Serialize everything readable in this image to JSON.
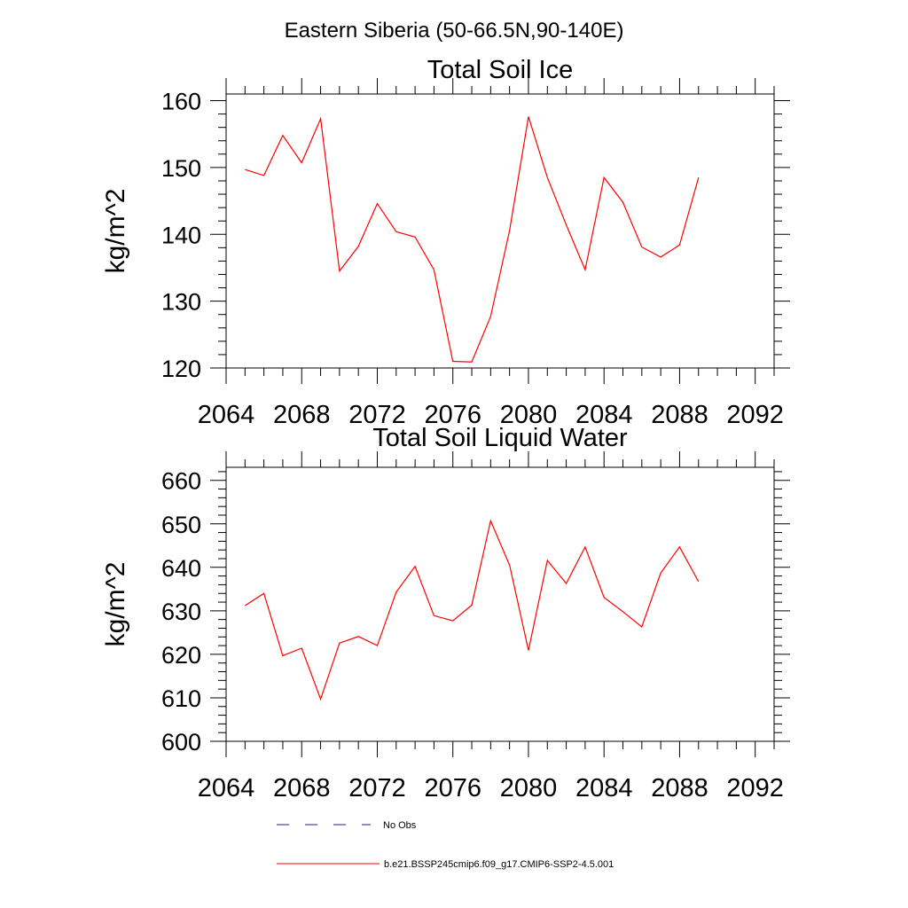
{
  "suptitle": "Eastern Siberia (50-66.5N,90-140E)",
  "colors": {
    "series": "#ff0000",
    "obs": "#1a1a8c",
    "axis": "#000000"
  },
  "chart_data": [
    {
      "type": "line",
      "title": "Total Soil Ice",
      "ylabel": "kg/m^2",
      "xlabel": "",
      "xlim": [
        2064,
        2093
      ],
      "ylim": [
        120,
        161
      ],
      "xticks": [
        "2064",
        "2068",
        "2072",
        "2076",
        "2080",
        "2084",
        "2088",
        "2092"
      ],
      "yticks": [
        "120",
        "130",
        "140",
        "150",
        "160"
      ],
      "x": [
        2065,
        2066,
        2067,
        2068,
        2069,
        2070,
        2071,
        2072,
        2073,
        2074,
        2075,
        2076,
        2077,
        2078,
        2079,
        2080,
        2081,
        2082,
        2083,
        2084,
        2085,
        2086,
        2087,
        2088,
        2089
      ],
      "series": [
        {
          "name": "b.e21.BSSP245cmip6.f09_g17.CMIP6-SSP2-4.5.001",
          "values": [
            149.7,
            148.8,
            154.8,
            150.7,
            157.3,
            134.5,
            138.2,
            144.6,
            140.4,
            139.6,
            134.7,
            121.0,
            120.9,
            127.7,
            140.6,
            157.6,
            148.5,
            141.4,
            134.7,
            148.5,
            144.8,
            138.1,
            136.6,
            138.4,
            148.5
          ]
        }
      ]
    },
    {
      "type": "line",
      "title": "Total Soil Liquid Water",
      "ylabel": "kg/m^2",
      "xlabel": "",
      "xlim": [
        2064,
        2093
      ],
      "ylim": [
        600,
        663
      ],
      "xticks": [
        "2064",
        "2068",
        "2072",
        "2076",
        "2080",
        "2084",
        "2088",
        "2092"
      ],
      "yticks": [
        "600",
        "610",
        "620",
        "630",
        "640",
        "650",
        "660"
      ],
      "x": [
        2065,
        2066,
        2067,
        2068,
        2069,
        2070,
        2071,
        2072,
        2073,
        2074,
        2075,
        2076,
        2077,
        2078,
        2079,
        2080,
        2081,
        2082,
        2083,
        2084,
        2085,
        2086,
        2087,
        2088,
        2089
      ],
      "series": [
        {
          "name": "b.e21.BSSP245cmip6.f09_g17.CMIP6-SSP2-4.5.001",
          "values": [
            631.2,
            634.0,
            619.7,
            621.4,
            609.7,
            622.6,
            624.1,
            622.0,
            634.3,
            640.2,
            628.9,
            627.7,
            631.3,
            650.7,
            640.5,
            620.9,
            641.6,
            636.3,
            644.7,
            633.1,
            629.8,
            626.3,
            638.7,
            644.7,
            636.7
          ]
        }
      ]
    }
  ],
  "legend": [
    {
      "label": "No Obs",
      "style": "dashed",
      "color": "#1a1a8c"
    },
    {
      "label": "b.e21.BSSP245cmip6.f09_g17.CMIP6-SSP2-4.5.001",
      "style": "solid",
      "color": "#ff0000"
    }
  ]
}
